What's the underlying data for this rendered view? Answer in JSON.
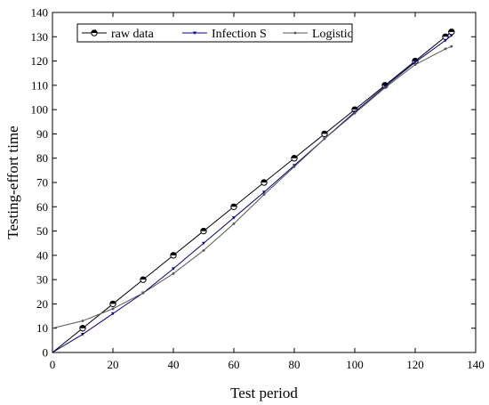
{
  "chart_data": {
    "type": "line",
    "xlabel": "Test period",
    "ylabel": "Testing-effort time",
    "xlim": [
      0,
      140
    ],
    "ylim": [
      0,
      140
    ],
    "xticks": [
      0,
      20,
      40,
      60,
      80,
      100,
      120,
      140
    ],
    "yticks": [
      0,
      10,
      20,
      30,
      40,
      50,
      60,
      70,
      80,
      90,
      100,
      110,
      120,
      130,
      140
    ],
    "grid": false,
    "legend_position": "top-left",
    "series": [
      {
        "name": "raw data",
        "color": "#000000",
        "marker": "half-filled-circle",
        "x": [
          0,
          10,
          20,
          30,
          40,
          50,
          60,
          70,
          80,
          90,
          100,
          110,
          120,
          130,
          132
        ],
        "y": [
          0,
          10,
          20,
          30,
          40,
          50,
          60,
          70,
          80,
          90,
          100,
          110,
          120,
          130,
          132
        ]
      },
      {
        "name": "Infection S",
        "color": "#000080",
        "marker": "small-triangle",
        "x": [
          0,
          10,
          20,
          30,
          40,
          50,
          60,
          70,
          80,
          90,
          100,
          110,
          120,
          130,
          132
        ],
        "y": [
          0,
          7.5,
          16,
          24.5,
          34.5,
          45,
          55.5,
          66,
          77,
          88,
          99,
          109.5,
          119.5,
          128.5,
          130.5
        ]
      },
      {
        "name": "Logistic",
        "color": "#555555",
        "marker": "small-dot",
        "x": [
          0,
          10,
          20,
          30,
          40,
          50,
          60,
          70,
          80,
          90,
          100,
          110,
          120,
          130,
          132
        ],
        "y": [
          10,
          13,
          18,
          24.5,
          32.5,
          42,
          53,
          65,
          76.5,
          88,
          98.5,
          109,
          118.5,
          125,
          126
        ]
      }
    ]
  }
}
